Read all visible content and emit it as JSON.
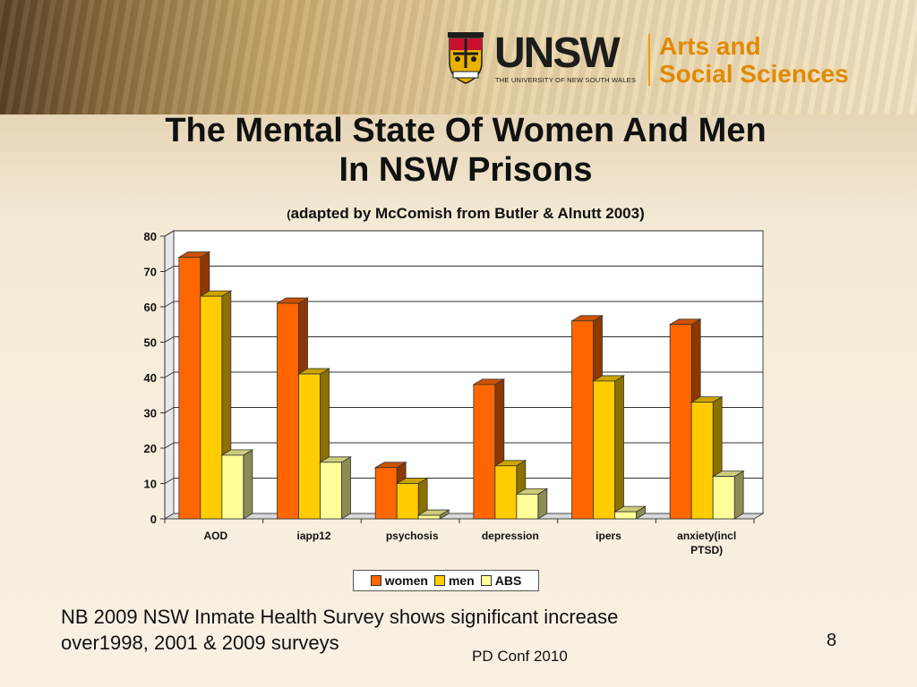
{
  "header": {
    "logo_word": "UNSW",
    "logo_sub": "THE UNIVERSITY OF NEW SOUTH WALES",
    "faculty_line1": "Arts and",
    "faculty_line2": "Social Sciences",
    "crest_icon": "university-crest-icon"
  },
  "slide": {
    "title_line1": "The Mental State Of Women And Men",
    "title_line2": "In NSW Prisons",
    "subtitle_open": "(",
    "subtitle_text": "adapted by McComish from Butler & Alnutt 2003)",
    "note_line1": "NB 2009 NSW Inmate Health Survey shows significant increase",
    "note_line2": "over1998, 2001 & 2009 surveys",
    "footer": "PD Conf 2010",
    "page_number": "8"
  },
  "colors": {
    "women": "#ff6600",
    "men": "#ffcc00",
    "abs": "#ffff99",
    "accent": "#e08a00"
  },
  "chart_data": {
    "type": "bar",
    "style": "3d-clustered",
    "categories": [
      "AOD",
      "iapp12",
      "psychosis",
      "depression",
      "ipers",
      "anxiety(incl PTSD)"
    ],
    "category_lines": [
      [
        "AOD"
      ],
      [
        "iapp12"
      ],
      [
        "psychosis"
      ],
      [
        "depression"
      ],
      [
        "ipers"
      ],
      [
        "anxiety(incl",
        "PTSD)"
      ]
    ],
    "series": [
      {
        "name": "women",
        "values": [
          74,
          61,
          14.5,
          38,
          56,
          55
        ]
      },
      {
        "name": "men",
        "values": [
          63,
          41,
          10,
          15,
          39,
          33
        ]
      },
      {
        "name": "ABS",
        "values": [
          18,
          16,
          1,
          7,
          2,
          12
        ]
      }
    ],
    "ylim": [
      0,
      80
    ],
    "yticks": [
      0,
      10,
      20,
      30,
      40,
      50,
      60,
      70,
      80
    ],
    "grid": true,
    "legend": "bottom"
  }
}
